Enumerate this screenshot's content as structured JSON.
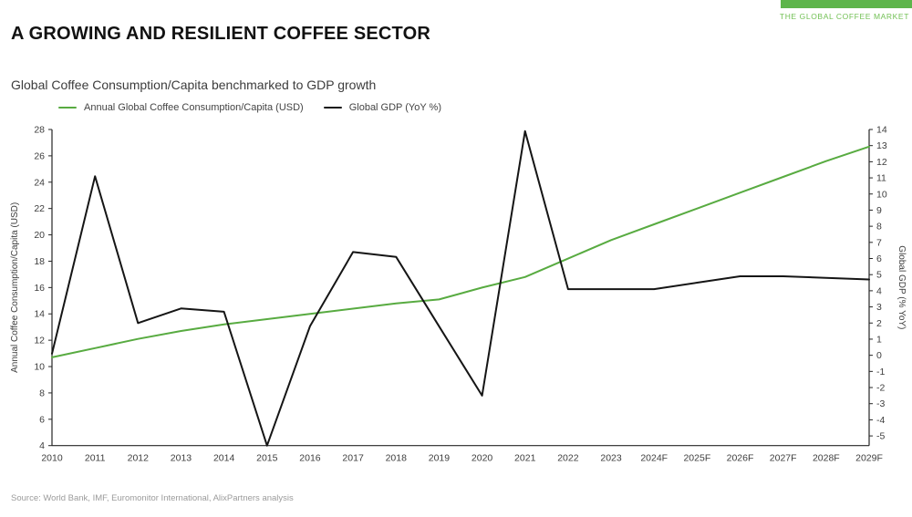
{
  "brand": {
    "bar_color": "#5eb54b",
    "label": "THE GLOBAL COFFEE MARKET",
    "label_color": "#72c055"
  },
  "title": "A GROWING AND RESILIENT COFFEE SECTOR",
  "subtitle": "Global Coffee Consumption/Capita benchmarked to GDP growth",
  "source": "Source: World Bank, IMF, Euromonitor International, AlixPartners analysis",
  "chart_data": {
    "type": "line",
    "categories": [
      "2010",
      "2011",
      "2012",
      "2013",
      "2014",
      "2015",
      "2016",
      "2017",
      "2018",
      "2019",
      "2020",
      "2021",
      "2022",
      "2023",
      "2024F",
      "2025F",
      "2026F",
      "2027F",
      "2028F",
      "2029F"
    ],
    "series": [
      {
        "name": "Annual Global Coffee Consumption/Capita (USD)",
        "axis": "left",
        "color": "#58ab41",
        "values": [
          10.7,
          11.4,
          12.1,
          12.7,
          13.2,
          13.6,
          14.0,
          14.4,
          14.8,
          15.1,
          16.0,
          16.8,
          18.2,
          19.6,
          20.8,
          22.0,
          23.2,
          24.4,
          25.6,
          26.7
        ]
      },
      {
        "name": "Global GDP (YoY %)",
        "axis": "right",
        "color": "#151515",
        "values": [
          0.1,
          11.1,
          2.0,
          2.9,
          2.7,
          -5.6,
          1.8,
          6.4,
          6.1,
          1.8,
          -2.5,
          13.9,
          4.1,
          4.1,
          4.1,
          4.5,
          4.9,
          4.9,
          4.8,
          4.7
        ]
      }
    ],
    "left_axis": {
      "label": "Annual Coffee Consumption/Capita (USD)",
      "min": 4,
      "max": 28,
      "tick_step": 2
    },
    "right_axis": {
      "label": "Global GDP (% YoY)",
      "tick_min": -5,
      "tick_max": 14,
      "tick_step": 1,
      "scale_min": -5.6,
      "scale_max": 14
    },
    "grid": false,
    "legend_position": "top-left"
  }
}
